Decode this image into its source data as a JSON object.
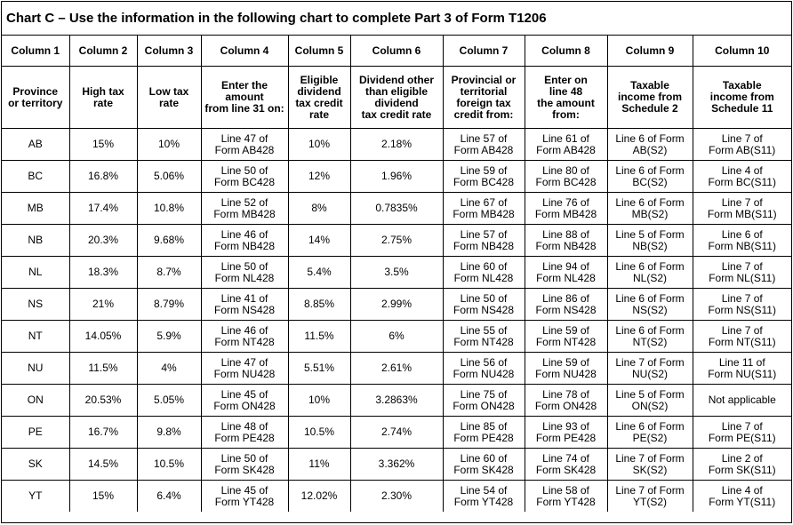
{
  "title": "Chart C – Use the information in the following chart to complete Part 3 of Form T1206",
  "column_numbers": [
    "Column 1",
    "Column 2",
    "Column 3",
    "Column 4",
    "Column 5",
    "Column 6",
    "Column 7",
    "Column 8",
    "Column 9",
    "Column 10"
  ],
  "column_descriptions": [
    [
      "Province",
      "or territory"
    ],
    [
      "High tax",
      "rate"
    ],
    [
      "Low tax",
      "rate"
    ],
    [
      "Enter the",
      "amount",
      "from line 31 on:"
    ],
    [
      "Eligible",
      "dividend",
      "tax credit",
      "rate"
    ],
    [
      "Dividend other",
      "than eligible",
      "dividend",
      "tax credit rate"
    ],
    [
      "Provincial or",
      "territorial",
      "foreign tax",
      "credit from:"
    ],
    [
      "Enter on",
      "line 48",
      "the amount",
      "from:"
    ],
    [
      "Taxable",
      "income from",
      "Schedule 2"
    ],
    [
      "Taxable",
      "income from",
      "Schedule 11"
    ]
  ],
  "rows": [
    {
      "prov": "AB",
      "high": "15%",
      "low": "10%",
      "c4": [
        "Line 47 of",
        "Form AB428"
      ],
      "c5": "10%",
      "c6": "2.18%",
      "c7": [
        "Line 57 of",
        "Form AB428"
      ],
      "c8": [
        "Line 61 of",
        "Form AB428"
      ],
      "c9": [
        "Line 6 of Form",
        "AB(S2)"
      ],
      "c10": [
        "Line 7 of",
        "Form AB(S11)"
      ]
    },
    {
      "prov": "BC",
      "high": "16.8%",
      "low": "5.06%",
      "c4": [
        "Line 50 of",
        "Form BC428"
      ],
      "c5": "12%",
      "c6": "1.96%",
      "c7": [
        "Line 59 of",
        "Form BC428"
      ],
      "c8": [
        "Line 80 of",
        "Form BC428"
      ],
      "c9": [
        "Line 6 of Form",
        "BC(S2)"
      ],
      "c10": [
        "Line 4 of",
        "Form BC(S11)"
      ]
    },
    {
      "prov": "MB",
      "high": "17.4%",
      "low": "10.8%",
      "c4": [
        "Line 52 of",
        "Form MB428"
      ],
      "c5": "8%",
      "c6": "0.7835%",
      "c7": [
        "Line 67 of",
        "Form MB428"
      ],
      "c8": [
        "Line 76 of",
        "Form MB428"
      ],
      "c9": [
        "Line 6 of Form",
        "MB(S2)"
      ],
      "c10": [
        "Line 7 of",
        "Form MB(S11)"
      ]
    },
    {
      "prov": "NB",
      "high": "20.3%",
      "low": "9.68%",
      "c4": [
        "Line 46 of",
        "Form NB428"
      ],
      "c5": "14%",
      "c6": "2.75%",
      "c7": [
        "Line 57 of",
        "Form NB428"
      ],
      "c8": [
        "Line 88 of",
        "Form NB428"
      ],
      "c9": [
        "Line 5 of Form",
        "NB(S2)"
      ],
      "c10": [
        "Line 6 of",
        "Form NB(S11)"
      ]
    },
    {
      "prov": "NL",
      "high": "18.3%",
      "low": "8.7%",
      "c4": [
        "Line 50 of",
        "Form NL428"
      ],
      "c5": "5.4%",
      "c6": "3.5%",
      "c7": [
        "Line 60 of",
        "Form NL428"
      ],
      "c8": [
        "Line 94 of",
        "Form NL428"
      ],
      "c9": [
        "Line 6 of Form",
        "NL(S2)"
      ],
      "c10": [
        "Line 7 of",
        "Form NL(S11)"
      ]
    },
    {
      "prov": "NS",
      "high": "21%",
      "low": "8.79%",
      "c4": [
        "Line 41 of",
        "Form NS428"
      ],
      "c5": "8.85%",
      "c6": "2.99%",
      "c7": [
        "Line 50 of",
        "Form NS428"
      ],
      "c8": [
        "Line 86 of",
        "Form NS428"
      ],
      "c9": [
        "Line 6 of Form",
        "NS(S2)"
      ],
      "c10": [
        "Line 7 of",
        "Form NS(S11)"
      ]
    },
    {
      "prov": "NT",
      "high": "14.05%",
      "low": "5.9%",
      "c4": [
        "Line 46 of",
        "Form NT428"
      ],
      "c5": "11.5%",
      "c6": "6%",
      "c7": [
        "Line 55 of",
        "Form NT428"
      ],
      "c8": [
        "Line 59 of",
        "Form NT428"
      ],
      "c9": [
        "Line 6 of Form",
        "NT(S2)"
      ],
      "c10": [
        "Line 7 of",
        "Form NT(S11)"
      ]
    },
    {
      "prov": "NU",
      "high": "11.5%",
      "low": "4%",
      "c4": [
        "Line 47 of",
        "Form NU428"
      ],
      "c5": "5.51%",
      "c6": "2.61%",
      "c7": [
        "Line 56 of",
        "Form NU428"
      ],
      "c8": [
        "Line 59 of",
        "Form NU428"
      ],
      "c9": [
        "Line 7 of Form",
        "NU(S2)"
      ],
      "c10": [
        "Line 11 of",
        "Form NU(S11)"
      ]
    },
    {
      "prov": "ON",
      "high": "20.53%",
      "low": "5.05%",
      "c4": [
        "Line 45 of",
        "Form ON428"
      ],
      "c5": "10%",
      "c6": "3.2863%",
      "c7": [
        "Line 75 of",
        "Form ON428"
      ],
      "c8": [
        "Line 78 of",
        "Form ON428"
      ],
      "c9": [
        "Line 5 of Form",
        "ON(S2)"
      ],
      "c10": [
        "Not applicable"
      ]
    },
    {
      "prov": "PE",
      "high": "16.7%",
      "low": "9.8%",
      "c4": [
        "Line 48 of",
        "Form PE428"
      ],
      "c5": "10.5%",
      "c6": "2.74%",
      "c7": [
        "Line 85 of",
        "Form PE428"
      ],
      "c8": [
        "Line 93 of",
        "Form PE428"
      ],
      "c9": [
        "Line 6 of Form",
        "PE(S2)"
      ],
      "c10": [
        "Line 7 of",
        "Form PE(S11)"
      ]
    },
    {
      "prov": "SK",
      "high": "14.5%",
      "low": "10.5%",
      "c4": [
        "Line 50 of",
        "Form SK428"
      ],
      "c5": "11%",
      "c6": "3.362%",
      "c7": [
        "Line 60 of",
        "Form SK428"
      ],
      "c8": [
        "Line 74 of",
        "Form SK428"
      ],
      "c9": [
        "Line 7 of Form",
        "SK(S2)"
      ],
      "c10": [
        "Line 2 of",
        "Form SK(S11)"
      ]
    },
    {
      "prov": "YT",
      "high": "15%",
      "low": "6.4%",
      "c4": [
        "Line 45 of",
        "Form YT428"
      ],
      "c5": "12.02%",
      "c6": "2.30%",
      "c7": [
        "Line 54 of",
        "Form YT428"
      ],
      "c8": [
        "Line 58 of",
        "Form YT428"
      ],
      "c9": [
        "Line 7 of Form",
        "YT(S2)"
      ],
      "c10": [
        "Line 4 of",
        "Form YT(S11)"
      ]
    }
  ]
}
